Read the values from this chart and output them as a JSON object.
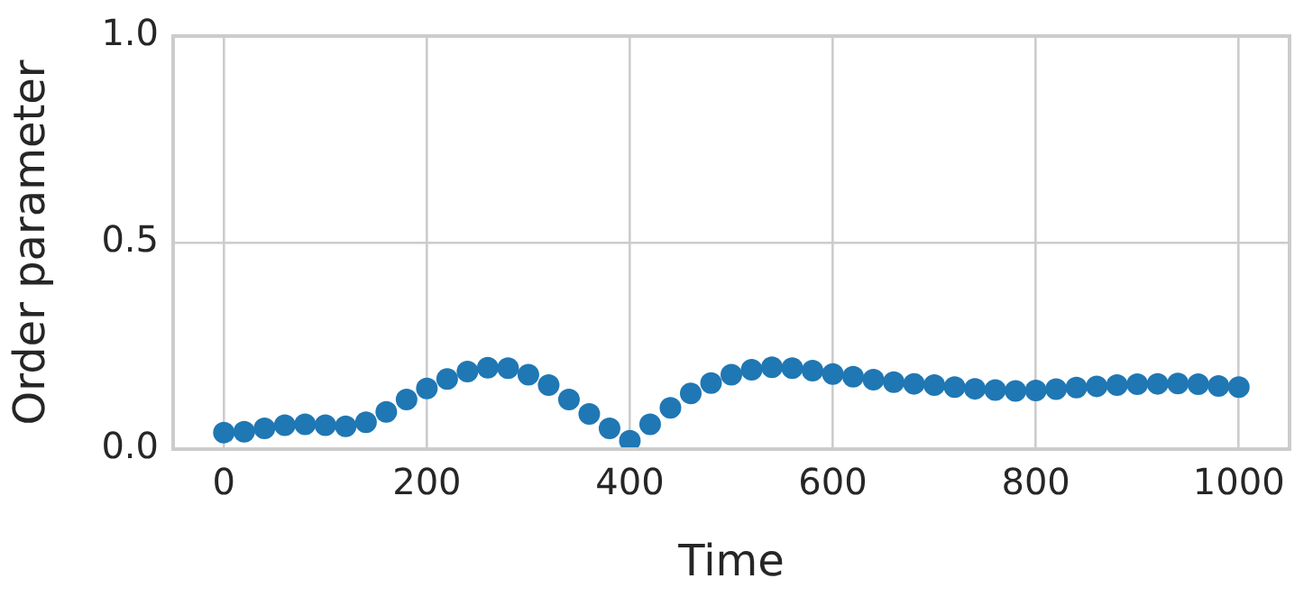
{
  "chart_data": {
    "type": "scatter",
    "xlabel": "Time",
    "ylabel": "Order parameter",
    "x": [
      0,
      20,
      40,
      60,
      80,
      100,
      120,
      140,
      160,
      180,
      200,
      220,
      240,
      260,
      280,
      300,
      320,
      340,
      360,
      380,
      400,
      420,
      440,
      460,
      480,
      500,
      520,
      540,
      560,
      580,
      600,
      620,
      640,
      660,
      680,
      700,
      720,
      740,
      760,
      780,
      800,
      820,
      840,
      860,
      880,
      900,
      920,
      940,
      960,
      980,
      1000
    ],
    "series": [
      {
        "color": "#1f77b4",
        "values": [
          0.04,
          0.042,
          0.05,
          0.058,
          0.06,
          0.058,
          0.055,
          0.065,
          0.09,
          0.12,
          0.147,
          0.17,
          0.188,
          0.197,
          0.196,
          0.18,
          0.155,
          0.12,
          0.085,
          0.05,
          0.02,
          0.06,
          0.1,
          0.135,
          0.16,
          0.18,
          0.192,
          0.198,
          0.196,
          0.19,
          0.182,
          0.175,
          0.168,
          0.162,
          0.158,
          0.155,
          0.15,
          0.146,
          0.143,
          0.141,
          0.142,
          0.145,
          0.149,
          0.152,
          0.155,
          0.157,
          0.158,
          0.159,
          0.157,
          0.153,
          0.15
        ]
      }
    ],
    "xlim": [
      -50,
      1050
    ],
    "xticks": [
      0,
      200,
      400,
      600,
      800,
      1000
    ],
    "ylim": [
      0,
      1
    ],
    "yticks": [
      {
        "value": 0,
        "label": "0.0"
      },
      {
        "value": 0.5,
        "label": "0.5"
      },
      {
        "value": 1,
        "label": "1.0"
      }
    ],
    "grid": true,
    "legend": false,
    "marker": "circle"
  }
}
